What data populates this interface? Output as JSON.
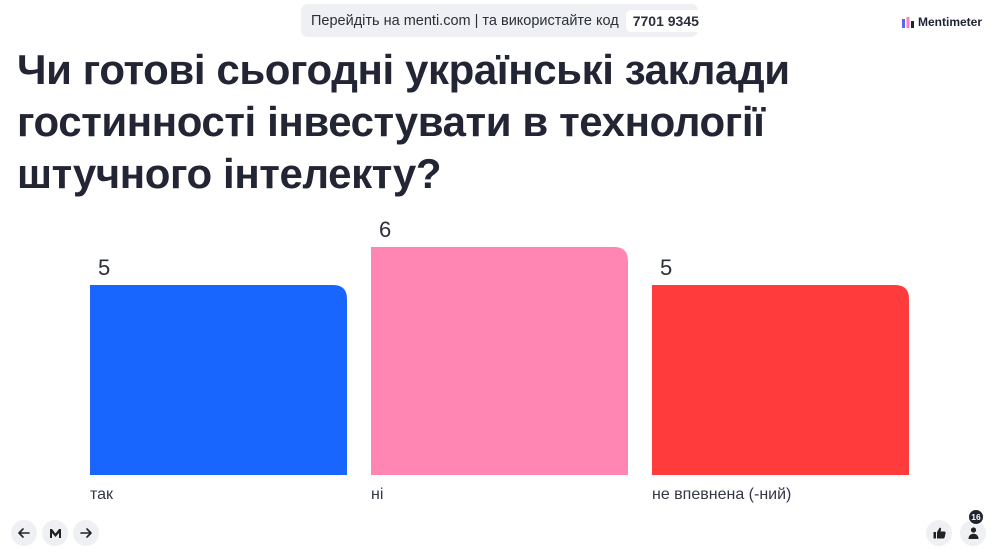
{
  "join": {
    "text": "Перейдіть на menti.com | та використайте код",
    "code": "7701 9345"
  },
  "brand": {
    "name": "Mentimeter"
  },
  "question": "Чи готові сьогодні українські заклади гостинності інвестувати в технології штучного інтелекту?",
  "chart_data": {
    "type": "bar",
    "categories": [
      "так",
      "ні",
      "не впевнена (-ний)"
    ],
    "values": [
      5,
      6,
      5
    ],
    "colors": [
      "#1966ff",
      "#ff85b2",
      "#ff3b3b"
    ],
    "ylim": [
      0,
      6
    ]
  },
  "controls": {
    "participants": "16",
    "prev_icon": "arrow-left-icon",
    "menu_icon": "mentimeter-logo-icon",
    "next_icon": "arrow-right-icon",
    "reactions_icon": "thumbs-up-icon",
    "participants_icon": "person-icon"
  }
}
